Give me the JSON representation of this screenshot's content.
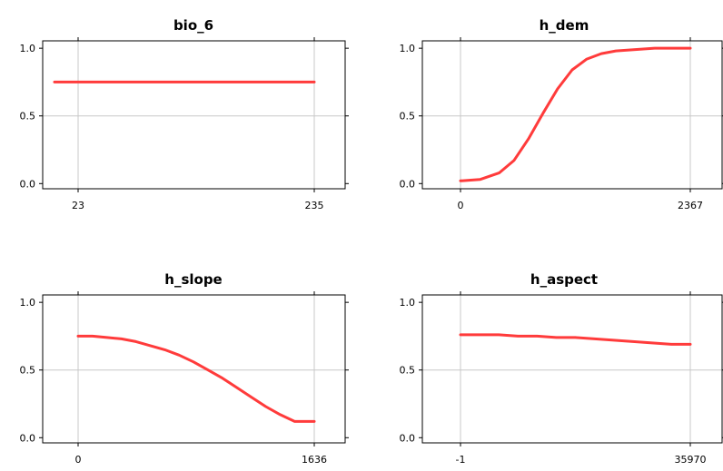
{
  "chart_data": [
    {
      "type": "line",
      "title": "bio_6",
      "xlabel": "",
      "ylabel": "",
      "ylim": [
        0,
        1
      ],
      "y_ticks": [
        "0.0",
        "0.5",
        "1.0"
      ],
      "x_ticks": [
        "23",
        "235"
      ],
      "xlim": [
        0,
        235
      ],
      "grid": true,
      "series": [
        {
          "x": [
            0,
            235
          ],
          "y": [
            0.75,
            0.75
          ]
        }
      ],
      "color": "#ff3b3b"
    },
    {
      "type": "line",
      "title": "h_dem",
      "xlabel": "",
      "ylabel": "",
      "ylim": [
        0,
        1
      ],
      "y_ticks": [
        "0.0",
        "0.5",
        "1.0"
      ],
      "x_ticks": [
        "0",
        "2367"
      ],
      "xlim": [
        0,
        2367
      ],
      "grid": true,
      "series": [
        {
          "x": [
            0,
            200,
            400,
            550,
            700,
            850,
            1000,
            1150,
            1300,
            1450,
            1600,
            1800,
            2000,
            2200,
            2367
          ],
          "y": [
            0.02,
            0.03,
            0.08,
            0.17,
            0.33,
            0.52,
            0.7,
            0.84,
            0.92,
            0.96,
            0.98,
            0.99,
            1.0,
            1.0,
            1.0
          ]
        }
      ],
      "color": "#ff3b3b"
    },
    {
      "type": "line",
      "title": "h_slope",
      "xlabel": "",
      "ylabel": "",
      "ylim": [
        0,
        1
      ],
      "y_ticks": [
        "0.0",
        "0.5",
        "1.0"
      ],
      "x_ticks": [
        "0",
        "1636"
      ],
      "xlim": [
        0,
        1636
      ],
      "grid": true,
      "series": [
        {
          "x": [
            0,
            100,
            200,
            300,
            400,
            500,
            600,
            700,
            800,
            900,
            1000,
            1100,
            1200,
            1300,
            1400,
            1500,
            1636
          ],
          "y": [
            0.75,
            0.75,
            0.74,
            0.73,
            0.71,
            0.68,
            0.65,
            0.61,
            0.56,
            0.5,
            0.44,
            0.37,
            0.3,
            0.23,
            0.17,
            0.12,
            0.12
          ]
        }
      ],
      "color": "#ff3b3b"
    },
    {
      "type": "line",
      "title": "h_aspect",
      "xlabel": "",
      "ylabel": "",
      "ylim": [
        0,
        1
      ],
      "y_ticks": [
        "0.0",
        "0.5",
        "1.0"
      ],
      "x_ticks": [
        "-1",
        "35970"
      ],
      "xlim": [
        -1,
        35970
      ],
      "grid": true,
      "series": [
        {
          "x": [
            -1,
            3000,
            6000,
            9000,
            12000,
            15000,
            18000,
            21000,
            24000,
            27000,
            30000,
            33000,
            35970
          ],
          "y": [
            0.76,
            0.76,
            0.76,
            0.75,
            0.75,
            0.74,
            0.74,
            0.73,
            0.72,
            0.71,
            0.7,
            0.69,
            0.69
          ]
        }
      ],
      "color": "#ff3b3b"
    }
  ]
}
